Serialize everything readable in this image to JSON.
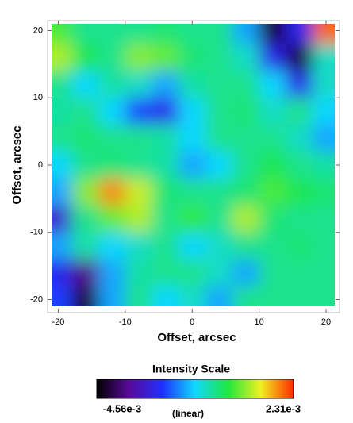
{
  "chart_data": {
    "type": "heatmap",
    "xlabel": "Offset, arcsec",
    "ylabel": "Offset, arcsec",
    "xlim": [
      -21,
      21.3
    ],
    "ylim": [
      -21,
      21
    ],
    "xticks": [
      -20,
      -10,
      0,
      10,
      20
    ],
    "yticks": [
      -20,
      -10,
      0,
      10,
      20
    ],
    "x": [
      -20,
      -16,
      -12,
      -8,
      -4,
      0,
      4,
      8,
      12,
      16,
      20
    ],
    "y": [
      20,
      16,
      12,
      8,
      4,
      0,
      -4,
      -8,
      -12,
      -16,
      -20
    ],
    "z": [
      [
        0.00025,
        -0.00044,
        -0.00044,
        -0.00044,
        -0.0003,
        -0.00044,
        -0.00044,
        -0.00147,
        -0.00422,
        -0.0025,
        0.00197
      ],
      [
        0.0008,
        -9e-05,
        -0.00044,
        0.00059,
        0.00039,
        -0.0003,
        -0.00044,
        -0.00078,
        -0.0025,
        -0.00422,
        -0.00078
      ],
      [
        -0.00044,
        -0.00113,
        -0.00058,
        -0.00078,
        -0.00147,
        -0.00058,
        -0.00044,
        -0.00044,
        -0.00113,
        -0.0025,
        -0.00078
      ],
      [
        -0.00058,
        -0.00044,
        -0.00113,
        -0.00216,
        -0.0025,
        -0.00113,
        -0.00044,
        -0.0003,
        -0.00078,
        -0.00044,
        -0.00113
      ],
      [
        -0.00044,
        -0.0003,
        -0.00044,
        -0.00044,
        -0.00058,
        -0.00113,
        -0.00044,
        -0.00044,
        -0.00044,
        -0.00078,
        -0.00147
      ],
      [
        -0.00113,
        -0.00044,
        -0.0003,
        -0.00044,
        -0.00058,
        -0.00147,
        -0.00113,
        -0.00044,
        -9e-05,
        -0.00044,
        -0.00058
      ],
      [
        -0.00147,
        0.00059,
        0.00176,
        0.00094,
        -0.0003,
        -0.00044,
        -0.00044,
        -0.0003,
        0.00025,
        -9e-05,
        -0.0003
      ],
      [
        -0.00284,
        -0.00044,
        0.00039,
        0.0008,
        -0.00044,
        0.00011,
        -0.00044,
        0.0008,
        -0.0003,
        -0.00044,
        -0.00044
      ],
      [
        -0.00147,
        -0.00058,
        -0.00113,
        -0.00078,
        -0.00044,
        -0.00113,
        -0.00078,
        -0.00044,
        -0.00044,
        -0.0003,
        -0.00044
      ],
      [
        -0.0025,
        -0.00353,
        -0.00147,
        -0.00058,
        -0.00044,
        -0.00044,
        -0.00078,
        -0.00147,
        -0.00044,
        -0.00044,
        -0.00044
      ],
      [
        -0.00216,
        -0.00422,
        -0.00147,
        -0.00044,
        -0.00113,
        -0.00078,
        -0.00147,
        -0.00044,
        -0.00044,
        -0.00044,
        -0.00044
      ]
    ],
    "colormap": [
      "#000000",
      "#5a0a9a",
      "#1f2fff",
      "#10d8ff",
      "#20e840",
      "#f0f020",
      "#ff2a00"
    ],
    "colorbar": {
      "title": "Intensity Scale",
      "scale": "(linear)",
      "min": {
        "value": -0.00456,
        "label": "-4.56e-3"
      },
      "max": {
        "value": 0.00231,
        "label": "2.31e-3"
      }
    }
  }
}
